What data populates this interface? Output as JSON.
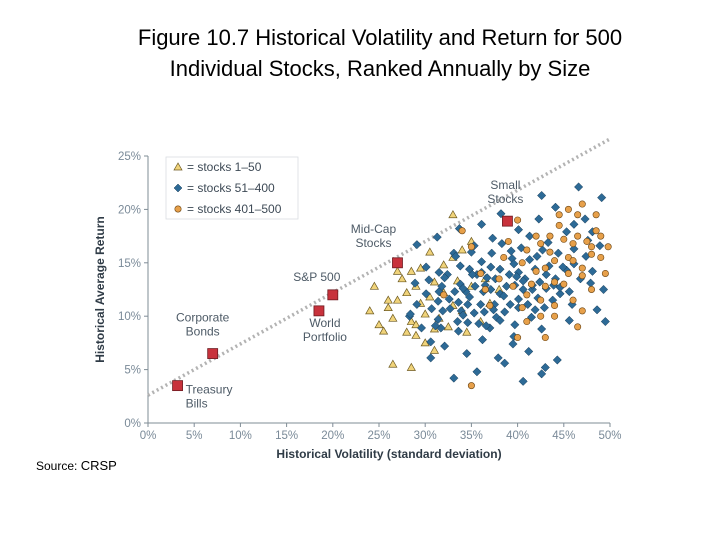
{
  "title": {
    "line1": "Figure 10.7  Historical Volatility and Return for 500",
    "line2": "Individual Stocks, Ranked Annually by Size"
  },
  "source": {
    "label": "Source:",
    "value": "CRSP"
  },
  "colors": {
    "triangle": "#f0d37a",
    "diamond": "#2d6a96",
    "circle": "#e7a04a",
    "marker": "#c8323c",
    "trendline": "#b3b3b3",
    "axis_text": "#7a8a98"
  },
  "chart_data": {
    "type": "scatter",
    "xlabel": "Historical Volatility (standard deviation)",
    "ylabel": "Historical Average Return",
    "xlim": [
      0,
      50
    ],
    "ylim": [
      0,
      25
    ],
    "x_ticks": [
      "0%",
      "5%",
      "10%",
      "15%",
      "20%",
      "25%",
      "30%",
      "35%",
      "40%",
      "45%",
      "50%"
    ],
    "y_ticks": [
      "0%",
      "5%",
      "10%",
      "15%",
      "20%",
      "25%"
    ],
    "legend": {
      "placement": "top-left",
      "entries": [
        {
          "symbol": "triangle",
          "label": "= stocks 1–50"
        },
        {
          "symbol": "diamond",
          "label": "= stocks 51–400"
        },
        {
          "symbol": "circle",
          "label": "= stocks 401–500"
        }
      ]
    },
    "trendline": {
      "x": [
        0,
        50
      ],
      "y": [
        2.6,
        26.6
      ]
    },
    "labeled_points": [
      {
        "name": "Treasury Bills",
        "label_lines": [
          "Treasury",
          "Bills"
        ],
        "x": 3.2,
        "y": 3.5
      },
      {
        "name": "Corporate Bonds",
        "label_lines": [
          "Corporate",
          "Bonds"
        ],
        "x": 7.0,
        "y": 6.5
      },
      {
        "name": "World Portfolio",
        "label_lines": [
          "World",
          "Portfolio"
        ],
        "x": 18.5,
        "y": 10.5
      },
      {
        "name": "S&P 500",
        "label_lines": [
          "S&P 500"
        ],
        "x": 20.0,
        "y": 12.0
      },
      {
        "name": "Mid-Cap Stocks",
        "label_lines": [
          "Mid-Cap",
          "Stocks"
        ],
        "x": 27.0,
        "y": 15.0
      },
      {
        "name": "Small Stocks",
        "label_lines": [
          "Small",
          "Stocks"
        ],
        "x": 38.9,
        "y": 18.9
      }
    ],
    "series": [
      {
        "name": "stocks 1–50",
        "symbol": "triangle",
        "points": [
          [
            24,
            10.5
          ],
          [
            24.5,
            12.8
          ],
          [
            25,
            9.2
          ],
          [
            25.5,
            8.6
          ],
          [
            26,
            10.8
          ],
          [
            26.5,
            9.8
          ],
          [
            26.5,
            5.5
          ],
          [
            27,
            11.5
          ],
          [
            27.5,
            13.5
          ],
          [
            28,
            8.5
          ],
          [
            28,
            12.2
          ],
          [
            28.5,
            14.2
          ],
          [
            28.5,
            9.5
          ],
          [
            29,
            12.8
          ],
          [
            29,
            9.2
          ],
          [
            29.5,
            11.2
          ],
          [
            29.5,
            14.5
          ],
          [
            30,
            7.5
          ],
          [
            30,
            10.2
          ],
          [
            30.5,
            11.8
          ],
          [
            31,
            8.8
          ],
          [
            31,
            13.2
          ],
          [
            31.5,
            9.8
          ],
          [
            32,
            12.2
          ],
          [
            32,
            14.8
          ],
          [
            32.5,
            9
          ],
          [
            33,
            11
          ],
          [
            33,
            15.5
          ],
          [
            34,
            10.5
          ],
          [
            34,
            16.2
          ],
          [
            34.5,
            8.5
          ],
          [
            35,
            12.8
          ],
          [
            35,
            17
          ],
          [
            36,
            9.5
          ],
          [
            36.5,
            13.5
          ],
          [
            37,
            11.2
          ],
          [
            38,
            12.5
          ],
          [
            33.5,
            13.3
          ],
          [
            27,
            14.2
          ],
          [
            30.5,
            16
          ],
          [
            33,
            19.5
          ],
          [
            28.5,
            5.2
          ],
          [
            26,
            11.5
          ],
          [
            29,
            8.2
          ],
          [
            31,
            6.8
          ]
        ]
      },
      {
        "name": "stocks 51–400",
        "symbol": "diamond",
        "points": [
          [
            28.3,
            10
          ],
          [
            28.4,
            10.2
          ],
          [
            28.9,
            13.1
          ],
          [
            29.1,
            11.1
          ],
          [
            29.6,
            8.9
          ],
          [
            30.1,
            12.1
          ],
          [
            30.4,
            13.4
          ],
          [
            30.7,
            10.7
          ],
          [
            31.4,
            9.7
          ],
          [
            31.4,
            11.4
          ],
          [
            31.5,
            14.1
          ],
          [
            31.5,
            12.3
          ],
          [
            31.7,
            8.9
          ],
          [
            31.8,
            12.8
          ],
          [
            31.9,
            10.5
          ],
          [
            32.4,
            13.9
          ],
          [
            32.7,
            10.7
          ],
          [
            33.1,
            15.9
          ],
          [
            33.2,
            12.3
          ],
          [
            33.5,
            9.5
          ],
          [
            33.6,
            11.3
          ],
          [
            33.8,
            13
          ],
          [
            33.8,
            14.7
          ],
          [
            33.9,
            10.5
          ],
          [
            34.4,
            12.3
          ],
          [
            34.6,
            9.4
          ],
          [
            34.8,
            14.4
          ],
          [
            34.8,
            11.8
          ],
          [
            35,
            16
          ],
          [
            35.3,
            10.3
          ],
          [
            35.4,
            12.8
          ],
          [
            35.6,
            13.9
          ],
          [
            35.8,
            9.3
          ],
          [
            36,
            11.1
          ],
          [
            36.1,
            15.1
          ],
          [
            36.3,
            12.3
          ],
          [
            36.4,
            10.4
          ],
          [
            36.7,
            13.6
          ],
          [
            37,
            8.9
          ],
          [
            37.1,
            12.5
          ],
          [
            37.2,
            15.9
          ],
          [
            37.5,
            11.1
          ],
          [
            37.6,
            13.5
          ],
          [
            37.7,
            9.9
          ],
          [
            38.1,
            12.1
          ],
          [
            38.1,
            14.4
          ],
          [
            38.3,
            16.8
          ],
          [
            38.6,
            10.4
          ],
          [
            38.8,
            12.8
          ],
          [
            39.1,
            13.9
          ],
          [
            39.2,
            11.1
          ],
          [
            39.4,
            15.4
          ],
          [
            39.7,
            9.2
          ],
          [
            39.7,
            12.9
          ],
          [
            40.1,
            14.1
          ],
          [
            40.1,
            10.8
          ],
          [
            40.4,
            16.4
          ],
          [
            40.6,
            12.5
          ],
          [
            40.8,
            13.5
          ],
          [
            41.1,
            11.1
          ],
          [
            41.3,
            15.3
          ],
          [
            41.5,
            9.9
          ],
          [
            41.6,
            12.5
          ],
          [
            41.9,
            14.4
          ],
          [
            42.2,
            11.7
          ],
          [
            42.4,
            13.2
          ],
          [
            42.7,
            16.2
          ],
          [
            42.9,
            10.8
          ],
          [
            43.1,
            12.6
          ],
          [
            43.4,
            14.7
          ],
          [
            43.8,
            11.5
          ],
          [
            44.1,
            13.5
          ],
          [
            44.4,
            15.9
          ],
          [
            44.6,
            12.1
          ],
          [
            45.3,
            14.3
          ],
          [
            45.6,
            12.3
          ],
          [
            46.1,
            16.3
          ],
          [
            46.8,
            13.5
          ],
          [
            47.4,
            15.6
          ],
          [
            48.1,
            14.2
          ],
          [
            48.9,
            16.6
          ],
          [
            49.3,
            12.5
          ],
          [
            32.1,
            7.2
          ],
          [
            34.5,
            6.5
          ],
          [
            36.2,
            7.8
          ],
          [
            37.9,
            6.1
          ],
          [
            39.5,
            7.4
          ],
          [
            41.2,
            6.7
          ],
          [
            43,
            5.2
          ],
          [
            35.6,
            4.8
          ],
          [
            38.6,
            5.6
          ],
          [
            30.6,
            6.1
          ],
          [
            33.1,
            4.2
          ],
          [
            40.6,
            3.9
          ],
          [
            42.6,
            4.6
          ],
          [
            44.3,
            5.9
          ],
          [
            29.1,
            16.7
          ],
          [
            31.3,
            17.4
          ],
          [
            33.7,
            18.2
          ],
          [
            36.1,
            18.6
          ],
          [
            38.2,
            19.6
          ],
          [
            40.1,
            18.1
          ],
          [
            42.3,
            19.1
          ],
          [
            44.1,
            20.2
          ],
          [
            46.1,
            18.6
          ],
          [
            48.1,
            17.9
          ],
          [
            32.1,
            13.6
          ],
          [
            34.1,
            10.1
          ],
          [
            36.1,
            14.1
          ],
          [
            38.1,
            9.6
          ],
          [
            39.9,
            13.7
          ],
          [
            41.9,
            10.6
          ],
          [
            43.9,
            12.9
          ],
          [
            45.9,
            11.1
          ],
          [
            47.9,
            13.1
          ],
          [
            49.5,
            9.5
          ],
          [
            30.1,
            14.6
          ],
          [
            33.3,
            15.6
          ],
          [
            35.3,
            16.6
          ],
          [
            37.3,
            17.3
          ],
          [
            39.3,
            16.1
          ],
          [
            41.3,
            17.5
          ],
          [
            43.3,
            16.9
          ],
          [
            45.3,
            17.9
          ],
          [
            47.3,
            19.1
          ],
          [
            49.1,
            21.1
          ],
          [
            46.6,
            22.1
          ],
          [
            42.6,
            21.3
          ],
          [
            30.6,
            7.6
          ],
          [
            33.6,
            8.6
          ],
          [
            36.6,
            9.1
          ],
          [
            39.6,
            8.1
          ],
          [
            42.6,
            8.8
          ],
          [
            45.6,
            9.6
          ],
          [
            48.6,
            10.6
          ],
          [
            31.1,
            9.1
          ],
          [
            34.1,
            12.6
          ],
          [
            37.1,
            14.6
          ],
          [
            40.1,
            11.6
          ],
          [
            43.1,
            13.9
          ],
          [
            46.1,
            14.9
          ],
          [
            34.6,
            11.1
          ],
          [
            37.4,
            10.6
          ],
          [
            40.6,
            13.3
          ],
          [
            44.6,
            12.7
          ],
          [
            32.6,
            11.6
          ],
          [
            36.5,
            12.9
          ],
          [
            39.6,
            14.9
          ],
          [
            42.1,
            15.6
          ],
          [
            35.1,
            13.9
          ],
          [
            38.5,
            11.9
          ],
          [
            41.6,
            12.9
          ],
          [
            44.9,
            14.6
          ],
          [
            47.6,
            17.1
          ]
        ]
      },
      {
        "name": "stocks 401–500",
        "symbol": "circle",
        "points": [
          [
            32,
            12
          ],
          [
            34,
            18
          ],
          [
            35,
            16.5
          ],
          [
            36,
            14
          ],
          [
            37,
            11
          ],
          [
            38,
            13.5
          ],
          [
            39,
            17
          ],
          [
            40,
            19
          ],
          [
            40.5,
            15
          ],
          [
            41,
            9.5
          ],
          [
            41.5,
            13
          ],
          [
            42,
            17.5
          ],
          [
            42.5,
            11.5
          ],
          [
            43,
            14.5
          ],
          [
            43.5,
            16
          ],
          [
            44,
            10
          ],
          [
            44.5,
            18.5
          ],
          [
            45,
            13
          ],
          [
            45.5,
            15.5
          ],
          [
            46,
            11.5
          ],
          [
            46.5,
            19.5
          ],
          [
            47,
            14.5
          ],
          [
            47.5,
            17
          ],
          [
            48,
            12.5
          ],
          [
            48.5,
            18
          ],
          [
            49,
            15.5
          ],
          [
            49.5,
            14
          ],
          [
            49.8,
            16.5
          ],
          [
            44,
            15.2
          ],
          [
            46,
            16.8
          ],
          [
            48,
            15.8
          ],
          [
            43,
            12.8
          ],
          [
            45,
            17.2
          ],
          [
            47,
            13.8
          ],
          [
            41,
            16.2
          ],
          [
            42,
            14.2
          ],
          [
            44,
            13.2
          ],
          [
            46,
            15.2
          ],
          [
            39.5,
            12.8
          ],
          [
            45.5,
            20
          ],
          [
            47,
            20.5
          ],
          [
            48.5,
            19.5
          ],
          [
            44.5,
            19.5
          ],
          [
            46.5,
            9
          ],
          [
            40,
            8
          ],
          [
            42.5,
            10
          ],
          [
            44,
            11
          ],
          [
            35,
            3.5
          ],
          [
            43,
            8
          ],
          [
            47,
            10.5
          ],
          [
            49,
            17.5
          ],
          [
            41,
            12
          ],
          [
            43.5,
            17.5
          ],
          [
            45.5,
            14
          ],
          [
            48,
            16.5
          ],
          [
            46.5,
            17.5
          ],
          [
            42.5,
            16.8
          ],
          [
            38.5,
            15.5
          ],
          [
            36.5,
            12.5
          ],
          [
            40.5,
            10.8
          ]
        ]
      }
    ]
  }
}
